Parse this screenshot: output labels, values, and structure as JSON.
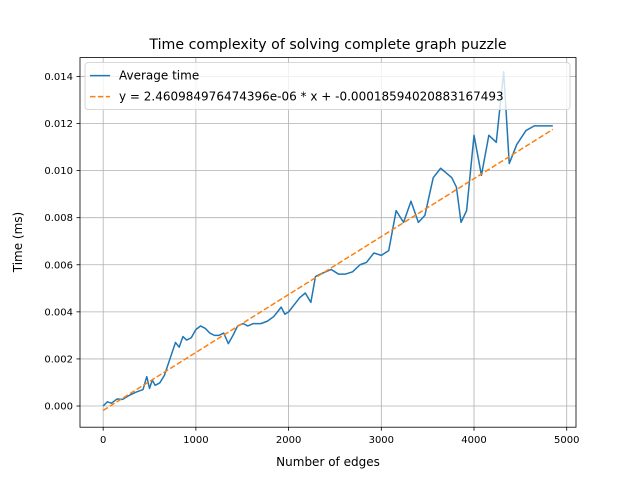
{
  "chart_data": {
    "type": "line",
    "title": "Time complexity of solving complete graph puzzle",
    "xlabel": "Number of edges",
    "ylabel": "Time (ms)",
    "xlim": [
      -250,
      5100
    ],
    "ylim": [
      -0.0009,
      0.0148
    ],
    "xticks": [
      0,
      1000,
      2000,
      3000,
      4000,
      5000
    ],
    "xtick_labels": [
      "0",
      "1000",
      "2000",
      "3000",
      "4000",
      "5000"
    ],
    "yticks": [
      0.0,
      0.002,
      0.004,
      0.006,
      0.008,
      0.01,
      0.012,
      0.014
    ],
    "ytick_labels": [
      "0.000",
      "0.002",
      "0.004",
      "0.006",
      "0.008",
      "0.010",
      "0.012",
      "0.014"
    ],
    "grid": true,
    "legend_position": "top-left",
    "series": [
      {
        "name": "Average time",
        "color": "#1f77b4",
        "style": "solid",
        "x": [
          0,
          45,
          90,
          150,
          210,
          280,
          350,
          430,
          470,
          500,
          530,
          560,
          610,
          660,
          720,
          780,
          820,
          860,
          900,
          950,
          1000,
          1050,
          1100,
          1150,
          1200,
          1250,
          1300,
          1350,
          1400,
          1450,
          1510,
          1560,
          1620,
          1700,
          1770,
          1840,
          1920,
          1960,
          2000,
          2060,
          2120,
          2180,
          2240,
          2290,
          2340,
          2400,
          2460,
          2540,
          2610,
          2690,
          2770,
          2840,
          2920,
          3000,
          3080,
          3160,
          3240,
          3320,
          3400,
          3470,
          3560,
          3640,
          3700,
          3760,
          3810,
          3860,
          3920,
          4000,
          4080,
          4160,
          4240,
          4320,
          4380,
          4460,
          4560,
          4650,
          4750,
          4850
        ],
        "y": [
          0.0,
          0.00018,
          0.00012,
          0.0003,
          0.00028,
          0.00045,
          0.00058,
          0.0007,
          0.00125,
          0.00075,
          0.0011,
          0.00088,
          0.00098,
          0.0013,
          0.002,
          0.0027,
          0.0025,
          0.00295,
          0.0028,
          0.0029,
          0.00325,
          0.0034,
          0.0033,
          0.0031,
          0.003,
          0.003,
          0.0031,
          0.00265,
          0.003,
          0.0034,
          0.0035,
          0.0034,
          0.0035,
          0.0035,
          0.0036,
          0.0038,
          0.0042,
          0.0039,
          0.004,
          0.0043,
          0.0046,
          0.0048,
          0.0044,
          0.0055,
          0.0056,
          0.0057,
          0.0058,
          0.0056,
          0.0056,
          0.0057,
          0.006,
          0.0061,
          0.0065,
          0.0064,
          0.0066,
          0.0083,
          0.0078,
          0.0087,
          0.0078,
          0.0081,
          0.0097,
          0.0101,
          0.0099,
          0.0097,
          0.0093,
          0.0078,
          0.0083,
          0.0115,
          0.0098,
          0.0115,
          0.0112,
          0.0142,
          0.0103,
          0.0111,
          0.0117,
          0.0119,
          0.0119,
          0.0119
        ]
      },
      {
        "name": "y = 2.460984976474396e-06 * x + -0.00018594020883167493",
        "color": "#ff7f0e",
        "style": "dashed",
        "fit": {
          "slope": 2.460984976474396e-06,
          "intercept": -0.00018594020883167493,
          "x_range": [
            0,
            4850
          ]
        }
      }
    ]
  }
}
